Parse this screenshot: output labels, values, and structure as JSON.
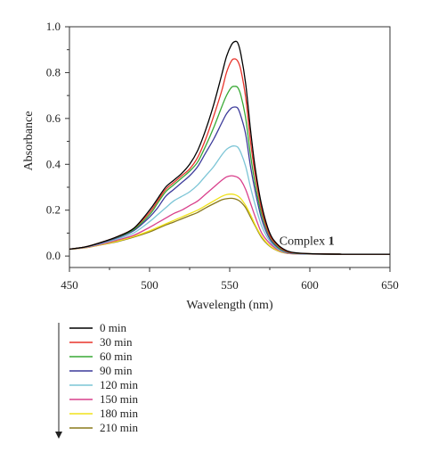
{
  "chart_data": {
    "type": "line",
    "xlabel": "Wavelength (nm)",
    "ylabel": "Absorbance",
    "xlim": [
      450,
      650
    ],
    "ylim": [
      -0.05,
      1.0
    ],
    "xticks": [
      450,
      500,
      550,
      600,
      650
    ],
    "yticks": [
      0.0,
      0.2,
      0.4,
      0.6,
      0.8,
      1.0
    ],
    "xtick_labels": [
      "450",
      "500",
      "550",
      "600",
      "650"
    ],
    "ytick_labels": [
      "0.0",
      "0.2",
      "0.4",
      "0.6",
      "0.8",
      "1.0"
    ],
    "grid": false,
    "legend_position": "below chart, left",
    "legend_arrow": "downward",
    "annotation": {
      "text": "Complex ",
      "bold_text": "1",
      "x": 581,
      "y": 0.05
    },
    "x": [
      450,
      460,
      470,
      480,
      490,
      500,
      505,
      510,
      515,
      520,
      525,
      530,
      535,
      540,
      545,
      548,
      551,
      553,
      555,
      557,
      560,
      563,
      566,
      570,
      575,
      580,
      585,
      590,
      600,
      620,
      650
    ],
    "series": [
      {
        "name": "0 min",
        "color": "#000000",
        "values": [
          0.03,
          0.04,
          0.06,
          0.085,
          0.12,
          0.2,
          0.25,
          0.3,
          0.33,
          0.36,
          0.4,
          0.46,
          0.55,
          0.66,
          0.79,
          0.87,
          0.92,
          0.935,
          0.93,
          0.88,
          0.75,
          0.55,
          0.38,
          0.22,
          0.1,
          0.05,
          0.025,
          0.015,
          0.01,
          0.008,
          0.008
        ]
      },
      {
        "name": "30 min",
        "color": "#e8332a",
        "values": [
          0.03,
          0.04,
          0.06,
          0.085,
          0.12,
          0.19,
          0.24,
          0.29,
          0.32,
          0.35,
          0.38,
          0.43,
          0.51,
          0.61,
          0.72,
          0.8,
          0.85,
          0.86,
          0.85,
          0.81,
          0.69,
          0.5,
          0.35,
          0.2,
          0.09,
          0.045,
          0.022,
          0.014,
          0.01,
          0.008,
          0.008
        ]
      },
      {
        "name": "60 min",
        "color": "#39a935",
        "values": [
          0.03,
          0.04,
          0.06,
          0.083,
          0.115,
          0.18,
          0.23,
          0.28,
          0.31,
          0.34,
          0.37,
          0.41,
          0.48,
          0.56,
          0.65,
          0.7,
          0.735,
          0.74,
          0.735,
          0.7,
          0.6,
          0.44,
          0.31,
          0.18,
          0.085,
          0.04,
          0.02,
          0.013,
          0.01,
          0.008,
          0.008
        ]
      },
      {
        "name": "90 min",
        "color": "#3b3a9a",
        "values": [
          0.03,
          0.04,
          0.058,
          0.08,
          0.11,
          0.17,
          0.21,
          0.26,
          0.29,
          0.32,
          0.35,
          0.39,
          0.45,
          0.51,
          0.58,
          0.62,
          0.645,
          0.65,
          0.645,
          0.61,
          0.53,
          0.39,
          0.28,
          0.16,
          0.075,
          0.037,
          0.018,
          0.012,
          0.009,
          0.008,
          0.008
        ]
      },
      {
        "name": "120 min",
        "color": "#7cc5d6",
        "values": [
          0.03,
          0.038,
          0.055,
          0.075,
          0.1,
          0.15,
          0.18,
          0.21,
          0.24,
          0.26,
          0.28,
          0.31,
          0.35,
          0.39,
          0.44,
          0.465,
          0.478,
          0.48,
          0.475,
          0.45,
          0.39,
          0.3,
          0.22,
          0.13,
          0.065,
          0.032,
          0.016,
          0.011,
          0.009,
          0.008,
          0.008
        ]
      },
      {
        "name": "150 min",
        "color": "#d9408c",
        "values": [
          0.03,
          0.037,
          0.052,
          0.07,
          0.09,
          0.125,
          0.145,
          0.165,
          0.185,
          0.2,
          0.22,
          0.24,
          0.27,
          0.3,
          0.33,
          0.345,
          0.35,
          0.348,
          0.343,
          0.33,
          0.29,
          0.23,
          0.17,
          0.1,
          0.055,
          0.028,
          0.014,
          0.01,
          0.009,
          0.008,
          0.008
        ]
      },
      {
        "name": "180 min",
        "color": "#f0e21a",
        "values": [
          0.03,
          0.036,
          0.05,
          0.065,
          0.085,
          0.11,
          0.125,
          0.14,
          0.155,
          0.17,
          0.185,
          0.2,
          0.22,
          0.24,
          0.26,
          0.268,
          0.27,
          0.268,
          0.262,
          0.25,
          0.22,
          0.18,
          0.135,
          0.085,
          0.045,
          0.024,
          0.013,
          0.01,
          0.009,
          0.008,
          0.008
        ]
      },
      {
        "name": "210 min",
        "color": "#8a7a1c",
        "values": [
          0.03,
          0.036,
          0.049,
          0.063,
          0.082,
          0.105,
          0.12,
          0.135,
          0.148,
          0.162,
          0.176,
          0.19,
          0.21,
          0.228,
          0.245,
          0.25,
          0.252,
          0.25,
          0.245,
          0.235,
          0.21,
          0.17,
          0.13,
          0.08,
          0.043,
          0.023,
          0.013,
          0.01,
          0.009,
          0.008,
          0.008
        ]
      }
    ]
  }
}
